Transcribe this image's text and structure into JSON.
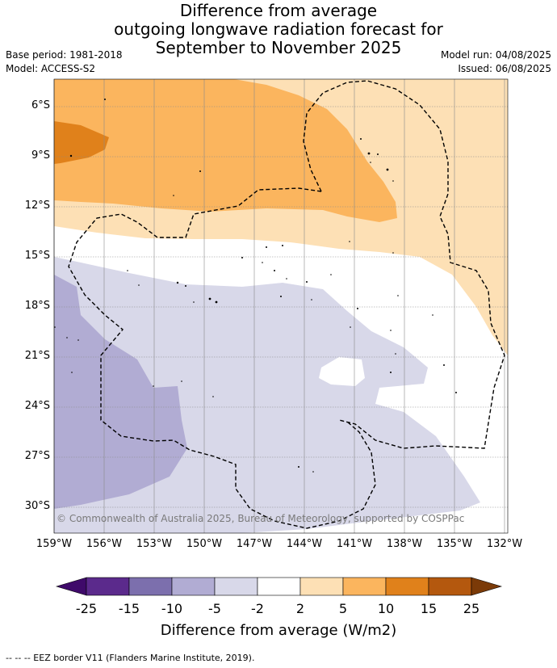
{
  "title": [
    "Difference from average",
    "outgoing longwave radiation forecast for",
    "September to November 2025"
  ],
  "meta_left": [
    "Base period: 1981-2018",
    "Model: ACCESS-S2"
  ],
  "meta_right": [
    "Model run: 04/08/2025",
    "Issued: 06/08/2025"
  ],
  "latitude_labels": [
    "6°S",
    "9°S",
    "12°S",
    "15°S",
    "18°S",
    "21°S",
    "24°S",
    "27°S",
    "30°S"
  ],
  "longitude_labels": [
    "159°W",
    "156°W",
    "153°W",
    "150°W",
    "147°W",
    "144°W",
    "141°W",
    "138°W",
    "135°W",
    "132°W"
  ],
  "copyright": "© Commonwealth of Australia 2025, Bureau of Meteorology, supported by COSPPac",
  "colorbar": {
    "title": "Difference from average (W/m2)",
    "tick_labels": [
      "-25",
      "-15",
      "-10",
      "-5",
      "-2",
      "2",
      "5",
      "10",
      "15",
      "25"
    ],
    "colors": [
      "#3f0a6a",
      "#5b2a8c",
      "#7c6fad",
      "#b1acd3",
      "#d8d8e9",
      "#ffffff",
      "#fde0b5",
      "#fbb55e",
      "#e0811b",
      "#b4580e",
      "#7b3a08"
    ]
  },
  "footer": "--  --  -- EEZ border V11 (Flanders Marine Institute, 2019)."
}
